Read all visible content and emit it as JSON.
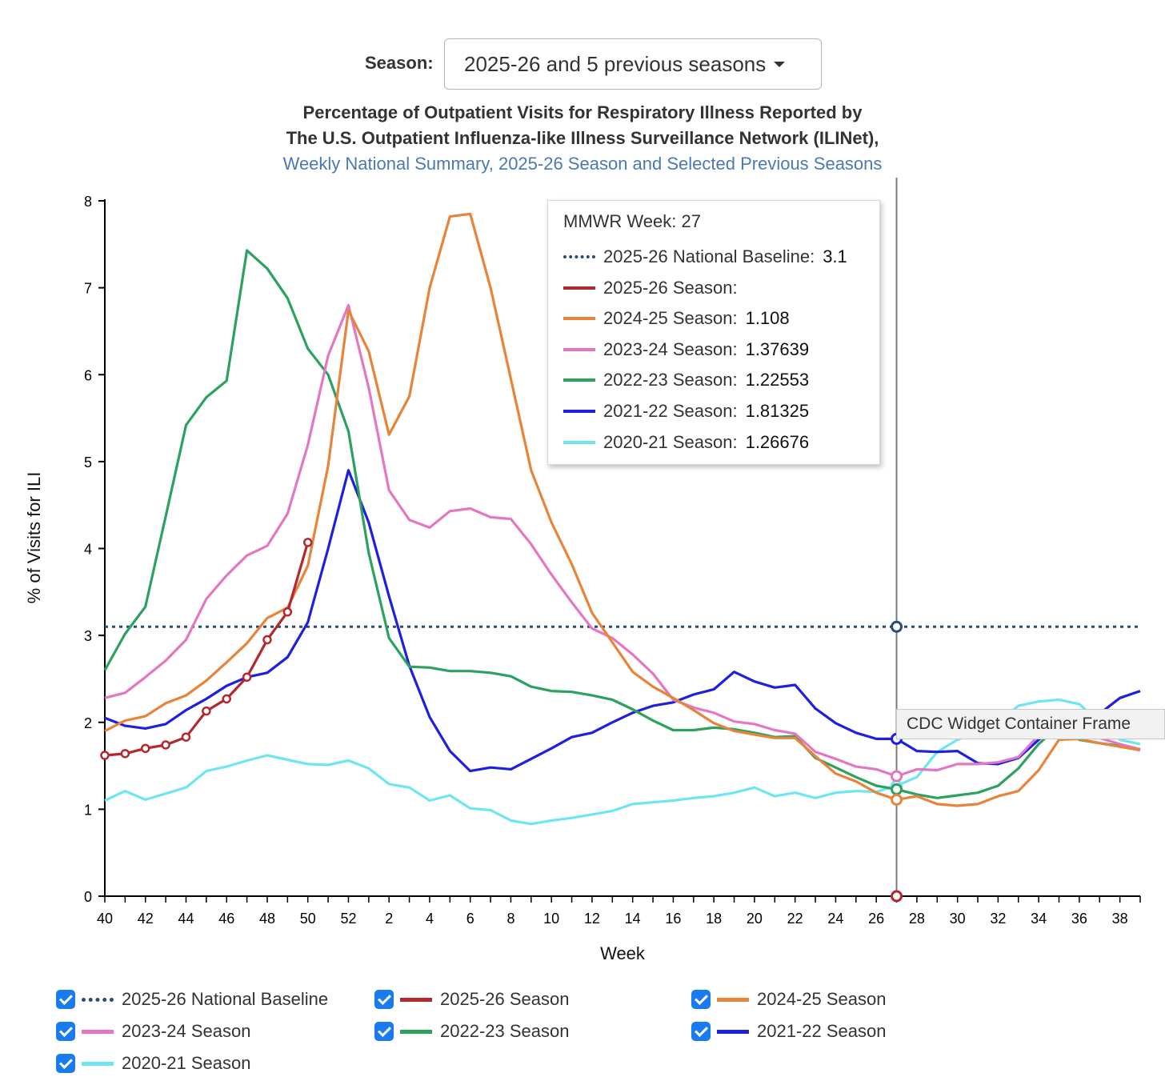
{
  "season_selector": {
    "label": "Season:",
    "value": "2025-26 and 5 previous seasons"
  },
  "titles": {
    "line1": "Percentage of Outpatient Visits for Respiratory Illness Reported by",
    "line2": "The U.S. Outpatient Influenza-like Illness Surveillance Network (ILINet),",
    "line3": "Weekly National Summary, 2025-26 Season and Selected Previous Seasons"
  },
  "tooltip": {
    "week_label": "MMWR Week: 27",
    "rows": [
      {
        "label": "2025-26 National Baseline:",
        "value": "3.1",
        "color": "#2a4a7c",
        "style": "dotted"
      },
      {
        "label": "2025-26 Season:",
        "value": "",
        "color": "#b3282d",
        "style": "solid"
      },
      {
        "label": "2024-25 Season:",
        "value": "1.108",
        "color": "#e8843a",
        "style": "solid"
      },
      {
        "label": "2023-24 Season:",
        "value": "1.37639",
        "color": "#e377c2",
        "style": "solid"
      },
      {
        "label": "2022-23 Season:",
        "value": "1.22553",
        "color": "#2ca25f",
        "style": "solid"
      },
      {
        "label": "2021-22 Season:",
        "value": "1.81325",
        "color": "#1f1fe0",
        "style": "solid"
      },
      {
        "label": "2020-21 Season:",
        "value": "1.26676",
        "color": "#6ee6f2",
        "style": "solid"
      }
    ]
  },
  "frame_tooltip": "CDC Widget Container Frame",
  "legend": [
    {
      "label": "2025-26 National Baseline",
      "color": "#2a4a7c",
      "style": "dotted"
    },
    {
      "label": "2025-26 Season",
      "color": "#b3282d",
      "style": "solid"
    },
    {
      "label": "2024-25 Season",
      "color": "#e8843a",
      "style": "solid"
    },
    {
      "label": "2023-24 Season",
      "color": "#e377c2",
      "style": "solid"
    },
    {
      "label": "2022-23 Season",
      "color": "#2ca25f",
      "style": "solid"
    },
    {
      "label": "2021-22 Season",
      "color": "#1f1fe0",
      "style": "solid"
    },
    {
      "label": "2020-21 Season",
      "color": "#6ee6f2",
      "style": "solid"
    }
  ],
  "chart_data": {
    "type": "line",
    "xlabel": "Week",
    "ylabel": "% of Visits for ILI",
    "ylim": [
      0,
      8
    ],
    "yticks": [
      "0",
      "1",
      "2",
      "3",
      "4",
      "5",
      "6",
      "7",
      "8"
    ],
    "weeks": [
      40,
      41,
      42,
      43,
      44,
      45,
      46,
      47,
      48,
      49,
      50,
      51,
      52,
      1,
      2,
      3,
      4,
      5,
      6,
      7,
      8,
      9,
      10,
      11,
      12,
      13,
      14,
      15,
      16,
      17,
      18,
      19,
      20,
      21,
      22,
      23,
      24,
      25,
      26,
      27,
      28,
      29,
      30,
      31,
      32,
      33,
      34,
      35,
      36,
      37,
      38,
      39
    ],
    "xtick_labels": [
      "40",
      "42",
      "44",
      "46",
      "48",
      "50",
      "52",
      "2",
      "4",
      "6",
      "8",
      "10",
      "12",
      "14",
      "16",
      "18",
      "20",
      "22",
      "24",
      "26",
      "28",
      "30",
      "32",
      "34",
      "36",
      "38"
    ],
    "baseline": {
      "name": "2025-26 National Baseline",
      "value": 3.1
    },
    "cursor_week_index": 39,
    "series": [
      {
        "name": "2020-21 Season",
        "color": "#6ee6f2",
        "values": [
          1.1,
          1.21,
          1.11,
          1.18,
          1.25,
          1.44,
          1.49,
          1.56,
          1.62,
          1.57,
          1.52,
          1.51,
          1.56,
          1.47,
          1.29,
          1.25,
          1.1,
          1.16,
          1.01,
          0.99,
          0.87,
          0.83,
          0.87,
          0.9,
          0.94,
          0.98,
          1.06,
          1.08,
          1.1,
          1.13,
          1.15,
          1.19,
          1.25,
          1.15,
          1.19,
          1.13,
          1.19,
          1.21,
          1.2,
          1.27,
          1.37,
          1.66,
          1.8,
          1.9,
          2.0,
          2.19,
          2.24,
          2.26,
          2.21,
          2.0,
          1.8,
          1.75
        ]
      },
      {
        "name": "2021-22 Season",
        "color": "#1f1fe0",
        "values": [
          2.05,
          1.96,
          1.93,
          1.98,
          2.14,
          2.27,
          2.42,
          2.52,
          2.57,
          2.75,
          3.15,
          4.0,
          4.9,
          4.3,
          3.45,
          2.65,
          2.06,
          1.67,
          1.44,
          1.48,
          1.46,
          1.58,
          1.7,
          1.83,
          1.88,
          2.0,
          2.11,
          2.19,
          2.23,
          2.32,
          2.38,
          2.58,
          2.47,
          2.4,
          2.43,
          2.16,
          1.99,
          1.88,
          1.81,
          1.81,
          1.67,
          1.66,
          1.67,
          1.53,
          1.52,
          1.59,
          1.8,
          1.98,
          2.05,
          2.1,
          2.28,
          2.36
        ]
      },
      {
        "name": "2022-23 Season",
        "color": "#2ca25f",
        "values": [
          2.6,
          3.02,
          3.33,
          4.37,
          5.42,
          5.74,
          5.93,
          7.43,
          7.22,
          6.88,
          6.3,
          6.0,
          5.35,
          3.95,
          2.97,
          2.64,
          2.63,
          2.59,
          2.59,
          2.57,
          2.53,
          2.41,
          2.36,
          2.35,
          2.31,
          2.26,
          2.15,
          2.02,
          1.91,
          1.91,
          1.94,
          1.92,
          1.88,
          1.83,
          1.84,
          1.59,
          1.48,
          1.37,
          1.27,
          1.23,
          1.17,
          1.13,
          1.16,
          1.19,
          1.27,
          1.47,
          1.75,
          1.96,
          1.8,
          1.76,
          1.73,
          1.69
        ]
      },
      {
        "name": "2023-24 Season",
        "color": "#e377c2",
        "values": [
          2.28,
          2.34,
          2.52,
          2.71,
          2.95,
          3.42,
          3.69,
          3.92,
          4.03,
          4.4,
          5.19,
          6.22,
          6.8,
          5.85,
          4.67,
          4.33,
          4.24,
          4.43,
          4.46,
          4.36,
          4.34,
          4.05,
          3.7,
          3.38,
          3.08,
          2.97,
          2.78,
          2.56,
          2.26,
          2.17,
          2.11,
          2.01,
          1.98,
          1.91,
          1.87,
          1.66,
          1.58,
          1.49,
          1.46,
          1.38,
          1.46,
          1.45,
          1.52,
          1.52,
          1.54,
          1.6,
          1.85,
          1.96,
          1.9,
          1.82,
          1.75,
          1.69
        ]
      },
      {
        "name": "2024-25 Season",
        "color": "#e8843a",
        "values": [
          1.9,
          2.02,
          2.07,
          2.22,
          2.31,
          2.48,
          2.69,
          2.91,
          3.2,
          3.32,
          3.8,
          4.95,
          6.74,
          6.27,
          5.31,
          5.75,
          7.0,
          7.82,
          7.85,
          7.0,
          5.95,
          4.9,
          4.3,
          3.82,
          3.26,
          2.92,
          2.58,
          2.41,
          2.28,
          2.14,
          1.99,
          1.9,
          1.86,
          1.82,
          1.82,
          1.61,
          1.41,
          1.32,
          1.19,
          1.11,
          1.15,
          1.06,
          1.04,
          1.06,
          1.15,
          1.21,
          1.45,
          1.8,
          1.81,
          1.76,
          1.72,
          1.68
        ]
      },
      {
        "name": "2025-26 Season",
        "color": "#b3282d",
        "markers": true,
        "values": [
          1.62,
          1.64,
          1.7,
          1.74,
          1.83,
          2.13,
          2.27,
          2.52,
          2.95,
          3.27,
          4.07
        ]
      }
    ]
  }
}
